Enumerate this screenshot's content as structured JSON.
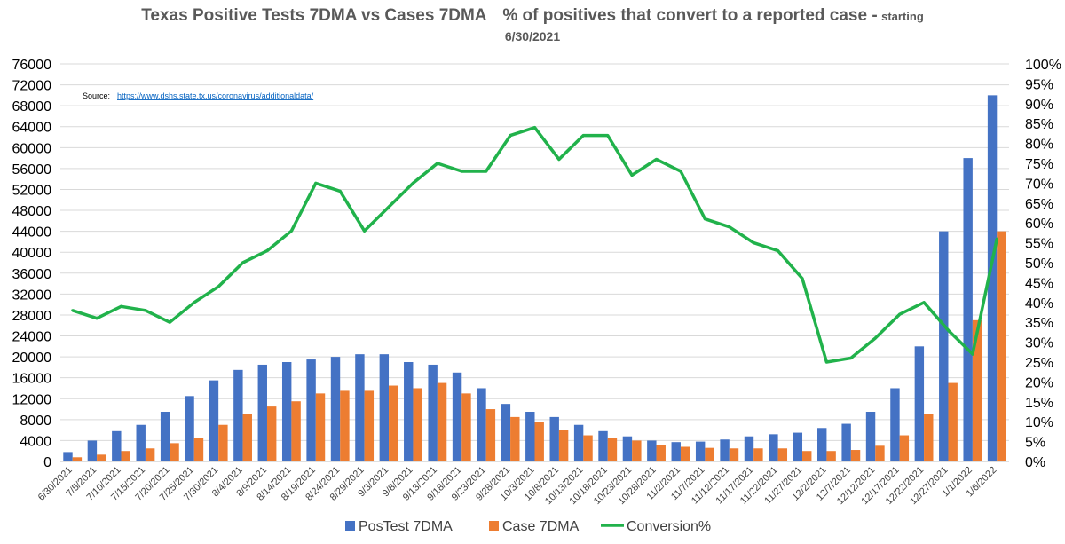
{
  "title": {
    "part1": "Texas Positive Tests 7DMA vs Cases 7DMA",
    "part2": "% of positives that convert to a reported case -",
    "part3": "starting",
    "line2": "6/30/2021"
  },
  "source": {
    "label": "Source:",
    "url": "https://www.dshs.state.tx.us/coronavirus/additionaldata/"
  },
  "legend": [
    {
      "label": "PosTest 7DMA",
      "color": "#4472C4"
    },
    {
      "label": "Case 7DMA",
      "color": "#ED7D31"
    },
    {
      "label": "Conversion%",
      "color": "#21B24B"
    }
  ],
  "chart_data": {
    "type": "bar+line",
    "x_labels": [
      "6/30/2021",
      "7/5/2021",
      "7/10/2021",
      "7/15/2021",
      "7/20/2021",
      "7/25/2021",
      "7/30/2021",
      "8/4/2021",
      "8/9/2021",
      "8/14/2021",
      "8/19/2021",
      "8/24/2021",
      "8/29/2021",
      "9/3/2021",
      "9/8/2021",
      "9/13/2021",
      "9/18/2021",
      "9/23/2021",
      "9/28/2021",
      "10/3/2021",
      "10/8/2021",
      "10/13/2021",
      "10/18/2021",
      "10/23/2021",
      "10/28/2021",
      "11/2/2021",
      "11/7/2021",
      "11/12/2021",
      "11/17/2021",
      "11/22/2021",
      "11/27/2021",
      "12/2/2021",
      "12/7/2021",
      "12/12/2021",
      "12/17/2021",
      "12/22/2021",
      "12/27/2021",
      "1/1/2022",
      "1/6/2022"
    ],
    "y_left": {
      "min": 0,
      "max": 76000,
      "step": 4000
    },
    "y_right": {
      "min": 0,
      "max": 100,
      "step": 5,
      "unit": "%"
    },
    "series": [
      {
        "name": "PosTest 7DMA",
        "axis": "left",
        "values": [
          1800,
          4000,
          5800,
          7000,
          9500,
          12500,
          15500,
          17500,
          18500,
          19000,
          19500,
          20000,
          20500,
          20500,
          19000,
          18500,
          17000,
          14000,
          11000,
          9500,
          8500,
          7000,
          5800,
          4800,
          4000,
          3700,
          3800,
          4200,
          4800,
          5200,
          5500,
          6400,
          7200,
          9500,
          14000,
          22000,
          44000,
          58000,
          70000
        ],
        "color": "#4472C4"
      },
      {
        "name": "Case 7DMA",
        "axis": "left",
        "values": [
          800,
          1300,
          2000,
          2500,
          3500,
          4500,
          7000,
          9000,
          10500,
          11500,
          13000,
          13500,
          13500,
          14500,
          14000,
          15000,
          13000,
          10000,
          8500,
          7500,
          6000,
          5000,
          4500,
          4000,
          3200,
          2800,
          2600,
          2500,
          2500,
          2500,
          2000,
          2000,
          2200,
          3000,
          5000,
          9000,
          15000,
          27000,
          44000
        ],
        "color": "#ED7D31"
      },
      {
        "name": "Conversion%",
        "axis": "right",
        "values": [
          38,
          36,
          39,
          38,
          35,
          40,
          44,
          50,
          53,
          58,
          70,
          68,
          58,
          64,
          70,
          75,
          73,
          73,
          82,
          84,
          76,
          82,
          82,
          72,
          76,
          73,
          61,
          59,
          55,
          53,
          46,
          25,
          26,
          31,
          37,
          40,
          33,
          27,
          56
        ],
        "color": "#21B24B"
      }
    ],
    "grid": "horizontal",
    "legend_position": "bottom"
  }
}
